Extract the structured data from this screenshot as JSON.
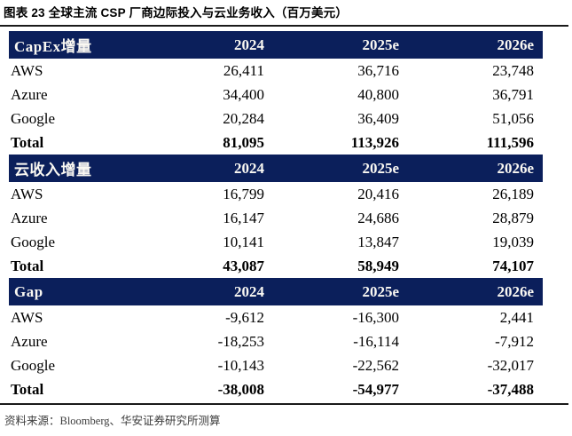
{
  "title": "图表 23 全球主流 CSP 厂商边际投入与云业务收入（百万美元）",
  "source_note": "资料来源：Bloomberg、华安证券研究所测算",
  "colors": {
    "header_bg": "#0B1F5B",
    "header_text": "#FAF8F2",
    "rule": "#1A1A1A",
    "body_text": "#000000"
  },
  "chart_data": {
    "type": "table",
    "title": "图表 23 全球主流 CSP 厂商边际投入与云业务收入（百万美元）",
    "unit": "百万美元",
    "sections": [
      {
        "label": "CapEx增量",
        "columns": [
          "2024",
          "2025e",
          "2026e"
        ],
        "rows": [
          {
            "label": "AWS",
            "values": [
              "26,411",
              "36,716",
              "23,748"
            ]
          },
          {
            "label": "Azure",
            "values": [
              "34,400",
              "40,800",
              "36,791"
            ]
          },
          {
            "label": "Google",
            "values": [
              "20,284",
              "36,409",
              "51,056"
            ]
          },
          {
            "label": "Total",
            "values": [
              "81,095",
              "113,926",
              "111,596"
            ]
          }
        ]
      },
      {
        "label": "云收入增量",
        "columns": [
          "2024",
          "2025e",
          "2026e"
        ],
        "rows": [
          {
            "label": "AWS",
            "values": [
              "16,799",
              "20,416",
              "26,189"
            ]
          },
          {
            "label": "Azure",
            "values": [
              "16,147",
              "24,686",
              "28,879"
            ]
          },
          {
            "label": "Google",
            "values": [
              "10,141",
              "13,847",
              "19,039"
            ]
          },
          {
            "label": "Total",
            "values": [
              "43,087",
              "58,949",
              "74,107"
            ]
          }
        ]
      },
      {
        "label": "Gap",
        "columns": [
          "2024",
          "2025e",
          "2026e"
        ],
        "rows": [
          {
            "label": "AWS",
            "values": [
              "-9,612",
              "-16,300",
              "2,441"
            ]
          },
          {
            "label": "Azure",
            "values": [
              "-18,253",
              "-16,114",
              "-7,912"
            ]
          },
          {
            "label": "Google",
            "values": [
              "-10,143",
              "-22,562",
              "-32,017"
            ]
          },
          {
            "label": "Total",
            "values": [
              "-38,008",
              "-54,977",
              "-37,488"
            ]
          }
        ]
      }
    ]
  }
}
